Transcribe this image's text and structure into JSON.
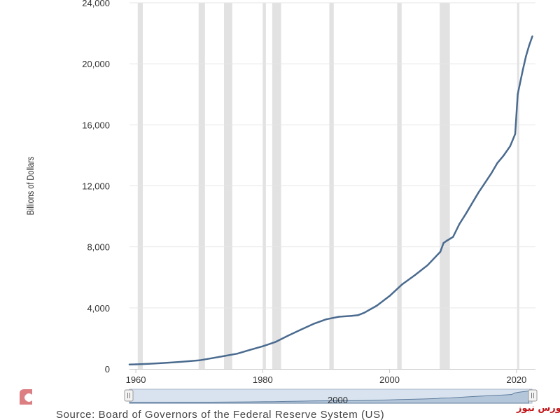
{
  "chart_data": {
    "type": "line",
    "title": "",
    "xlabel": "",
    "ylabel": "Billions of Dollars",
    "xlim": [
      1959,
      2023
    ],
    "ylim": [
      0,
      24000
    ],
    "x_ticks": [
      "1960",
      "1980",
      "2000",
      "2020"
    ],
    "y_ticks": [
      "0",
      "4,000",
      "8,000",
      "12,000",
      "16,000",
      "20,000",
      "24,000"
    ],
    "grid": true,
    "line_color": "#4a6b8f",
    "recession_color": "#e2e2e2",
    "recessions": [
      [
        1960.3,
        1961.1
      ],
      [
        1969.9,
        1970.9
      ],
      [
        1973.9,
        1975.2
      ],
      [
        1980.0,
        1980.5
      ],
      [
        1981.5,
        1982.9
      ],
      [
        1990.5,
        1991.2
      ],
      [
        2001.2,
        2001.9
      ],
      [
        2007.9,
        2009.5
      ],
      [
        2020.1,
        2020.4
      ]
    ],
    "series": [
      {
        "x": [
          1959,
          1960,
          1962,
          1964,
          1966,
          1968,
          1970,
          1972,
          1974,
          1976,
          1978,
          1980,
          1982,
          1984,
          1986,
          1988,
          1990,
          1992,
          1994,
          1995,
          1996,
          1998,
          2000,
          2002,
          2004,
          2006,
          2008,
          2008.5,
          2009,
          2010,
          2011,
          2012,
          2014,
          2016,
          2017,
          2018,
          2019,
          2019.8,
          2020.2,
          2020.5,
          2021,
          2021.5,
          2022,
          2022.5
        ],
        "y": [
          290,
          300,
          330,
          380,
          430,
          490,
          560,
          700,
          850,
          1000,
          1250,
          1480,
          1760,
          2180,
          2570,
          2950,
          3250,
          3420,
          3480,
          3520,
          3680,
          4150,
          4780,
          5550,
          6150,
          6800,
          7680,
          8250,
          8400,
          8650,
          9500,
          10150,
          11550,
          12800,
          13500,
          14000,
          14600,
          15400,
          18000,
          18600,
          19600,
          20500,
          21200,
          21800
        ]
      }
    ]
  },
  "source_text": "Source: Board of Governors of the Federal Reserve System (US)",
  "navigator_label": "2000",
  "watermark_text": "بورس نیوز"
}
